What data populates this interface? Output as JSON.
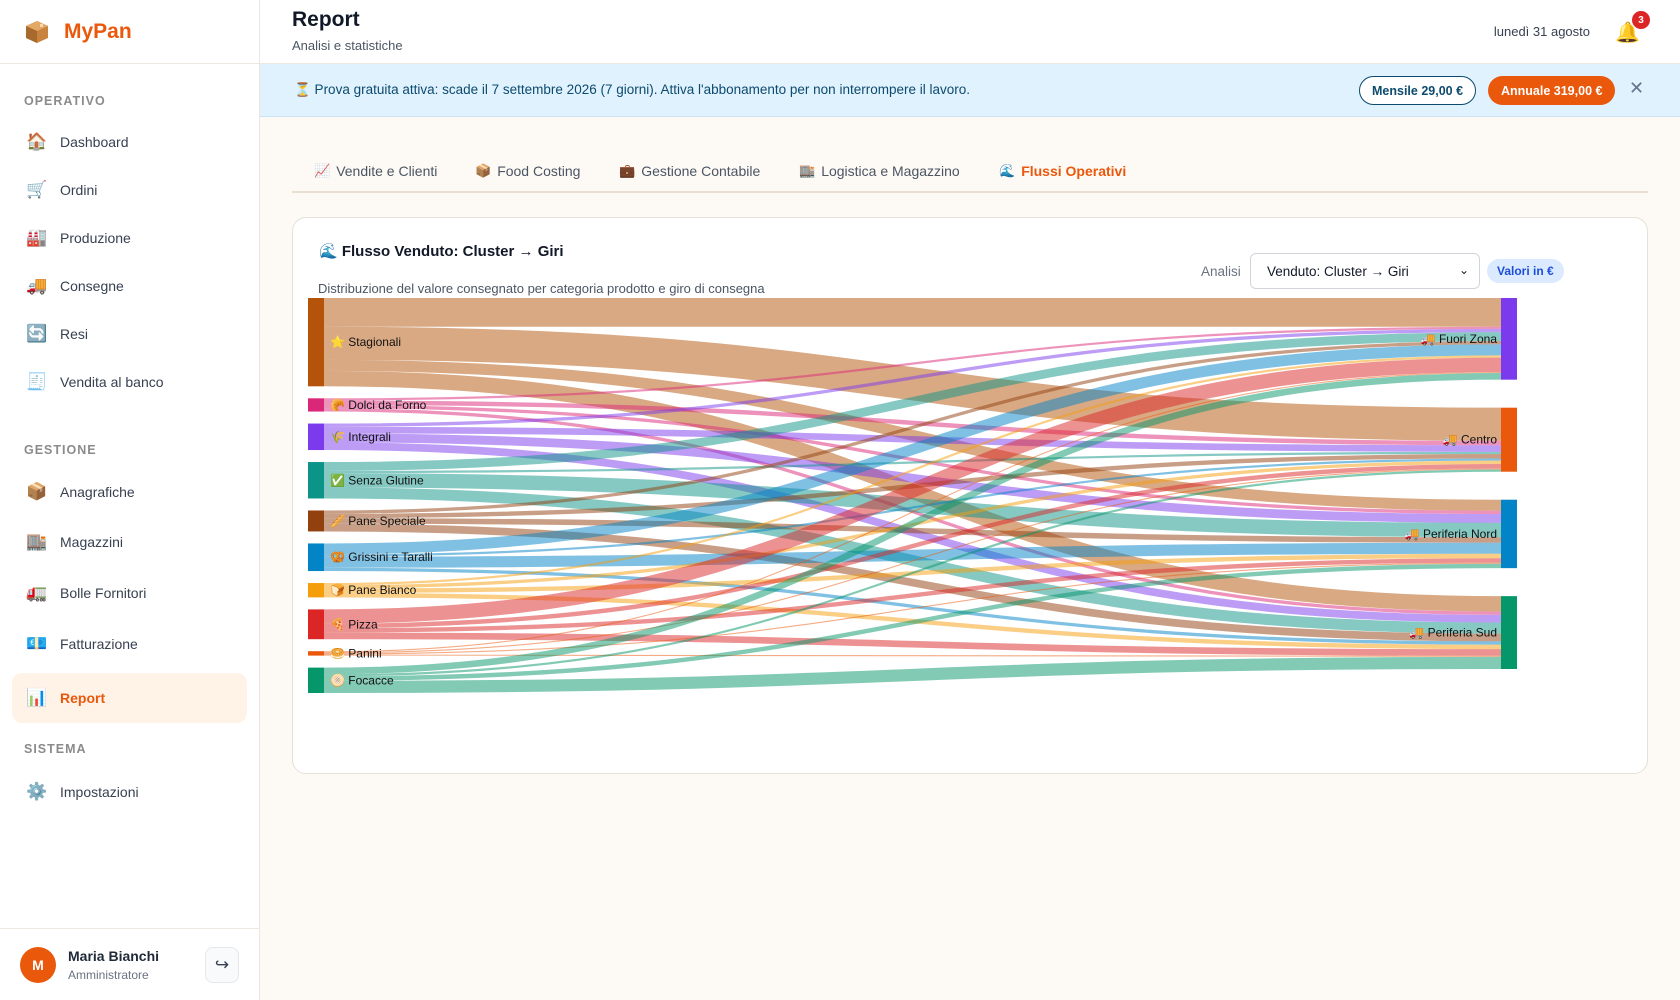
{
  "app": {
    "name": "MyPan"
  },
  "sidebar": {
    "sections": [
      {
        "title": "OPERATIVO"
      },
      {
        "title": "GESTIONE"
      },
      {
        "title": "SISTEMA"
      }
    ],
    "items": [
      {
        "label": "Dashboard",
        "icon": "house-icon"
      },
      {
        "label": "Ordini",
        "icon": "cart-icon"
      },
      {
        "label": "Produzione",
        "icon": "factory-icon"
      },
      {
        "label": "Consegne",
        "icon": "truck-icon"
      },
      {
        "label": "Resi",
        "icon": "refresh-icon"
      },
      {
        "label": "Vendita al banco",
        "icon": "receipt-icon"
      },
      {
        "label": "Anagrafiche",
        "icon": "box-icon"
      },
      {
        "label": "Magazzini",
        "icon": "building-icon"
      },
      {
        "label": "Bolle Fornitori",
        "icon": "delivery-truck-icon"
      },
      {
        "label": "Fatturazione",
        "icon": "money-icon"
      },
      {
        "label": "Report",
        "icon": "bar-chart-icon"
      },
      {
        "label": "Impostazioni",
        "icon": "gear-icon"
      }
    ]
  },
  "user": {
    "initial": "M",
    "name": "Maria Bianchi",
    "role": "Amministratore"
  },
  "header": {
    "title": "Report",
    "subtitle": "Analisi e statistiche",
    "date": "lunedì 31 agosto",
    "notifications": "3"
  },
  "banner": {
    "text": "⏳ Prova gratuita attiva: scade il 7 settembre 2026 (7 giorni). Attiva l'abbonamento per non interrompere il lavoro.",
    "monthly_label": "Mensile 29,00 €",
    "yearly_label": "Annuale 319,00 €",
    "close": "✕"
  },
  "tabs": [
    {
      "label": "Vendite e Clienti",
      "icon": "📈"
    },
    {
      "label": "Food Costing",
      "icon": "📦"
    },
    {
      "label": "Gestione Contabile",
      "icon": "💼"
    },
    {
      "label": "Logistica e Magazzino",
      "icon": "🏬"
    },
    {
      "label": "Flussi Operativi",
      "icon": "🌊"
    }
  ],
  "card": {
    "title": "🌊 Flusso Venduto: Cluster → Giri",
    "description": "Distribuzione del valore consegnato per categoria prodotto e giro di consegna",
    "analisi_label": "Analisi",
    "analisi_value": "Venduto: Cluster → Giri",
    "values_badge": "Valori in €"
  },
  "chart_data": {
    "type": "sankey",
    "sources": [
      {
        "name": "Stagionali",
        "icon": "⭐",
        "color": "#b45309"
      },
      {
        "name": "Dolci da Forno",
        "icon": "🥐",
        "color": "#db2777"
      },
      {
        "name": "Integrali",
        "icon": "🌾",
        "color": "#7c3aed"
      },
      {
        "name": "Senza Glutine",
        "icon": "✅",
        "color": "#0d9488"
      },
      {
        "name": "Pane Speciale",
        "icon": "🥖",
        "color": "#92400e"
      },
      {
        "name": "Grissini e Taralli",
        "icon": "🥨",
        "color": "#0284c7"
      },
      {
        "name": "Pane Bianco",
        "icon": "🍞",
        "color": "#f59e0b"
      },
      {
        "name": "Pizza",
        "icon": "🍕",
        "color": "#dc2626"
      },
      {
        "name": "Panini",
        "icon": "🥯",
        "color": "#ea580c"
      },
      {
        "name": "Focacce",
        "icon": "🫓",
        "color": "#059669"
      }
    ],
    "targets": [
      {
        "name": "Fuori Zona",
        "icon": "🚚",
        "color": "#7c3aed"
      },
      {
        "name": "Centro",
        "icon": "🚚",
        "color": "#ea580c"
      },
      {
        "name": "Periferia Nord",
        "icon": "🚚",
        "color": "#0284c7"
      },
      {
        "name": "Periferia Sud",
        "icon": "🚚",
        "color": "#059669"
      }
    ],
    "flows": [
      {
        "source": "Stagionali",
        "target": "Fuori Zona",
        "value": 26
      },
      {
        "source": "Stagionali",
        "target": "Centro",
        "value": 30
      },
      {
        "source": "Stagionali",
        "target": "Periferia Nord",
        "value": 10
      },
      {
        "source": "Stagionali",
        "target": "Periferia Sud",
        "value": 14
      },
      {
        "source": "Dolci da Forno",
        "target": "Fuori Zona",
        "value": 2
      },
      {
        "source": "Dolci da Forno",
        "target": "Centro",
        "value": 4
      },
      {
        "source": "Dolci da Forno",
        "target": "Periferia Nord",
        "value": 3
      },
      {
        "source": "Dolci da Forno",
        "target": "Periferia Sud",
        "value": 3
      },
      {
        "source": "Integrali",
        "target": "Fuori Zona",
        "value": 3
      },
      {
        "source": "Integrali",
        "target": "Centro",
        "value": 6
      },
      {
        "source": "Integrali",
        "target": "Periferia Nord",
        "value": 8
      },
      {
        "source": "Integrali",
        "target": "Periferia Sud",
        "value": 7
      },
      {
        "source": "Senza Glutine",
        "target": "Fuori Zona",
        "value": 8
      },
      {
        "source": "Senza Glutine",
        "target": "Centro",
        "value": 2
      },
      {
        "source": "Senza Glutine",
        "target": "Periferia Nord",
        "value": 13
      },
      {
        "source": "Senza Glutine",
        "target": "Periferia Sud",
        "value": 10
      },
      {
        "source": "Pane Speciale",
        "target": "Fuori Zona",
        "value": 3
      },
      {
        "source": "Pane Speciale",
        "target": "Centro",
        "value": 4
      },
      {
        "source": "Pane Speciale",
        "target": "Periferia Nord",
        "value": 5
      },
      {
        "source": "Pane Speciale",
        "target": "Periferia Sud",
        "value": 7
      },
      {
        "source": "Grissini e Taralli",
        "target": "Fuori Zona",
        "value": 10
      },
      {
        "source": "Grissini e Taralli",
        "target": "Centro",
        "value": 2
      },
      {
        "source": "Grissini e Taralli",
        "target": "Periferia Nord",
        "value": 10
      },
      {
        "source": "Grissini e Taralli",
        "target": "Periferia Sud",
        "value": 3
      },
      {
        "source": "Pane Bianco",
        "target": "Fuori Zona",
        "value": 2
      },
      {
        "source": "Pane Bianco",
        "target": "Centro",
        "value": 3
      },
      {
        "source": "Pane Bianco",
        "target": "Periferia Nord",
        "value": 4
      },
      {
        "source": "Pane Bianco",
        "target": "Periferia Sud",
        "value": 4
      },
      {
        "source": "Pizza",
        "target": "Fuori Zona",
        "value": 13
      },
      {
        "source": "Pizza",
        "target": "Centro",
        "value": 4
      },
      {
        "source": "Pizza",
        "target": "Periferia Nord",
        "value": 4
      },
      {
        "source": "Pizza",
        "target": "Periferia Sud",
        "value": 6
      },
      {
        "source": "Panini",
        "target": "Fuori Zona",
        "value": 1
      },
      {
        "source": "Panini",
        "target": "Centro",
        "value": 1
      },
      {
        "source": "Panini",
        "target": "Periferia Nord",
        "value": 1
      },
      {
        "source": "Panini",
        "target": "Periferia Sud",
        "value": 1
      },
      {
        "source": "Focacce",
        "target": "Fuori Zona",
        "value": 6
      },
      {
        "source": "Focacce",
        "target": "Centro",
        "value": 2
      },
      {
        "source": "Focacce",
        "target": "Periferia Nord",
        "value": 4
      },
      {
        "source": "Focacce",
        "target": "Periferia Sud",
        "value": 11
      }
    ]
  }
}
